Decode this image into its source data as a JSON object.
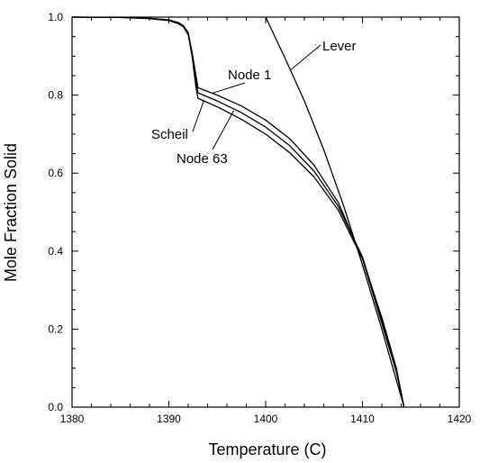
{
  "chart_data": {
    "type": "line",
    "xlabel": "Temperature (C)",
    "ylabel": "Mole Fraction Solid",
    "xlim": [
      1380,
      1420
    ],
    "ylim": [
      0.0,
      1.0
    ],
    "x_ticks": [
      1380,
      1390,
      1400,
      1410,
      1420
    ],
    "y_ticks": [
      0.0,
      0.2,
      0.4,
      0.6,
      0.8,
      1.0
    ],
    "x_tick_labels": [
      "1380",
      "1390",
      "1400",
      "1410",
      "1420"
    ],
    "y_tick_labels": [
      "0.0",
      "0.2",
      "0.4",
      "0.6",
      "0.8",
      "1.0"
    ],
    "grid": false,
    "series": [
      {
        "name": "Lever",
        "x": [
          1400.0,
          1402.0,
          1404.0,
          1406.0,
          1408.0,
          1410.0,
          1412.0,
          1414.3
        ],
        "y": [
          1.0,
          0.895,
          0.785,
          0.66,
          0.52,
          0.365,
          0.2,
          0.0
        ]
      },
      {
        "name": "Node 1",
        "x": [
          1380.0,
          1385.0,
          1388.0,
          1390.0,
          1391.0,
          1391.5,
          1392.0,
          1392.4,
          1392.8,
          1393.0,
          1395.0,
          1397.5,
          1400.0,
          1402.5,
          1405.0,
          1407.5,
          1410.0,
          1412.0,
          1413.5,
          1414.3
        ],
        "y": [
          1.0,
          0.999,
          0.997,
          0.993,
          0.986,
          0.978,
          0.96,
          0.91,
          0.85,
          0.819,
          0.8,
          0.772,
          0.736,
          0.688,
          0.62,
          0.525,
          0.38,
          0.215,
          0.09,
          0.0
        ]
      },
      {
        "name": "Scheil",
        "x": [
          1380.0,
          1385.0,
          1388.0,
          1390.0,
          1391.0,
          1391.5,
          1392.0,
          1392.4,
          1392.8,
          1393.0,
          1395.0,
          1397.5,
          1400.0,
          1402.5,
          1405.0,
          1407.5,
          1410.0,
          1412.0,
          1413.5,
          1414.3
        ],
        "y": [
          1.0,
          0.999,
          0.996,
          0.991,
          0.983,
          0.975,
          0.955,
          0.9,
          0.82,
          0.792,
          0.77,
          0.738,
          0.7,
          0.652,
          0.59,
          0.505,
          0.38,
          0.23,
          0.1,
          0.0
        ]
      },
      {
        "name": "Node 63",
        "x": [
          1380.0,
          1385.0,
          1388.0,
          1390.0,
          1391.0,
          1391.5,
          1392.0,
          1392.4,
          1392.8,
          1393.0,
          1395.0,
          1397.5,
          1400.0,
          1402.5,
          1405.0,
          1407.5,
          1410.0,
          1412.0,
          1413.5,
          1414.3
        ],
        "y": [
          1.0,
          0.999,
          0.997,
          0.992,
          0.985,
          0.977,
          0.958,
          0.905,
          0.835,
          0.806,
          0.785,
          0.755,
          0.718,
          0.67,
          0.605,
          0.515,
          0.385,
          0.225,
          0.095,
          0.0
        ]
      }
    ],
    "annotations": [
      {
        "text": "Lever"
      },
      {
        "text": "Node 1"
      },
      {
        "text": "Scheil"
      },
      {
        "text": "Node 63"
      }
    ]
  }
}
